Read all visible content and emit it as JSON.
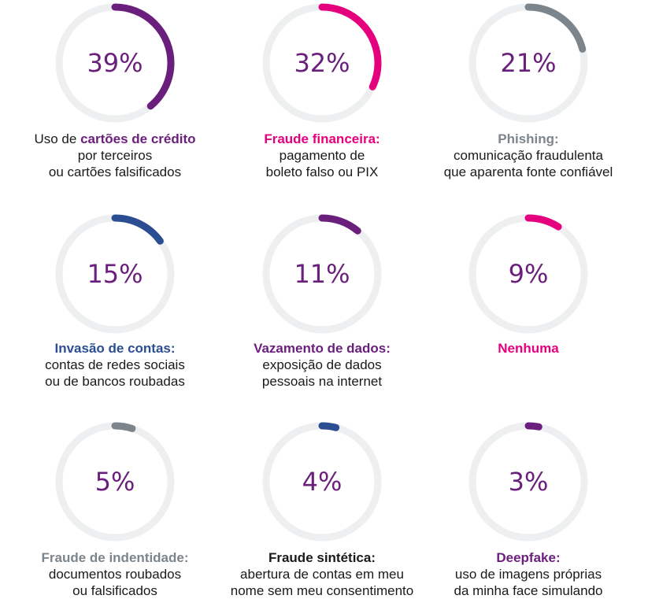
{
  "chart_data": {
    "type": "donut",
    "colors": {
      "track": "#eeeff0",
      "purple": "#6b1f7c",
      "magenta": "#e5007e",
      "gray": "#7c858c",
      "blue": "#2b4e93",
      "text": "#1a1a1a"
    },
    "items": [
      {
        "value": 39,
        "label": "39%",
        "color": "#6b1f7c",
        "caption": [
          {
            "parts": [
              {
                "t": "Uso de ",
                "c": "#1a1a1a",
                "b": false
              },
              {
                "t": "cartões de crédito",
                "c": "#6b1f7c",
                "b": true
              }
            ]
          },
          {
            "parts": [
              {
                "t": "por terceiros",
                "c": "#1a1a1a",
                "b": false
              }
            ]
          },
          {
            "parts": [
              {
                "t": "ou cartões falsificados",
                "c": "#1a1a1a",
                "b": false
              }
            ]
          }
        ]
      },
      {
        "value": 32,
        "label": "32%",
        "color": "#e5007e",
        "caption": [
          {
            "parts": [
              {
                "t": "Fraude financeira:",
                "c": "#e5007e",
                "b": true
              }
            ]
          },
          {
            "parts": [
              {
                "t": "pagamento de",
                "c": "#1a1a1a",
                "b": false
              }
            ]
          },
          {
            "parts": [
              {
                "t": "boleto falso ou PIX",
                "c": "#1a1a1a",
                "b": false
              }
            ]
          }
        ]
      },
      {
        "value": 21,
        "label": "21%",
        "color": "#7c858c",
        "caption": [
          {
            "parts": [
              {
                "t": "Phishing:",
                "c": "#7c858c",
                "b": true
              }
            ]
          },
          {
            "parts": [
              {
                "t": "comunicação fraudulenta",
                "c": "#1a1a1a",
                "b": false
              }
            ]
          },
          {
            "parts": [
              {
                "t": "que aparenta fonte confiável",
                "c": "#1a1a1a",
                "b": false
              }
            ]
          }
        ]
      },
      {
        "value": 15,
        "label": "15%",
        "color": "#2b4e93",
        "caption": [
          {
            "parts": [
              {
                "t": "Invasão de contas:",
                "c": "#2b4e93",
                "b": true
              }
            ]
          },
          {
            "parts": [
              {
                "t": "contas de redes sociais",
                "c": "#1a1a1a",
                "b": false
              }
            ]
          },
          {
            "parts": [
              {
                "t": "ou de bancos roubadas",
                "c": "#1a1a1a",
                "b": false
              }
            ]
          }
        ]
      },
      {
        "value": 11,
        "label": "11%",
        "color": "#6b1f7c",
        "caption": [
          {
            "parts": [
              {
                "t": "Vazamento de dados:",
                "c": "#6b1f7c",
                "b": true
              }
            ]
          },
          {
            "parts": [
              {
                "t": "exposição de dados",
                "c": "#1a1a1a",
                "b": false
              }
            ]
          },
          {
            "parts": [
              {
                "t": "pessoais na internet",
                "c": "#1a1a1a",
                "b": false
              }
            ]
          }
        ]
      },
      {
        "value": 9,
        "label": "9%",
        "color": "#e5007e",
        "caption": [
          {
            "parts": [
              {
                "t": "Nenhuma",
                "c": "#e5007e",
                "b": true
              }
            ]
          }
        ]
      },
      {
        "value": 5,
        "label": "5%",
        "color": "#7c858c",
        "caption": [
          {
            "parts": [
              {
                "t": "Fraude de indentidade:",
                "c": "#7c858c",
                "b": true
              }
            ]
          },
          {
            "parts": [
              {
                "t": "documentos roubados",
                "c": "#1a1a1a",
                "b": false
              }
            ]
          },
          {
            "parts": [
              {
                "t": "ou falsificados",
                "c": "#1a1a1a",
                "b": false
              }
            ]
          }
        ]
      },
      {
        "value": 4,
        "label": "4%",
        "color": "#2b4e93",
        "caption": [
          {
            "parts": [
              {
                "t": "Fraude sintética:",
                "c": "#1a1a1a",
                "b": true
              }
            ]
          },
          {
            "parts": [
              {
                "t": "abertura de contas em meu",
                "c": "#1a1a1a",
                "b": false
              }
            ]
          },
          {
            "parts": [
              {
                "t": "nome sem meu consentimento",
                "c": "#1a1a1a",
                "b": false
              }
            ]
          }
        ]
      },
      {
        "value": 3,
        "label": "3%",
        "color": "#6b1f7c",
        "caption": [
          {
            "parts": [
              {
                "t": "Deepfake:",
                "c": "#6b1f7c",
                "b": true
              }
            ]
          },
          {
            "parts": [
              {
                "t": "uso de imagens próprias",
                "c": "#1a1a1a",
                "b": false
              }
            ]
          },
          {
            "parts": [
              {
                "t": "da minha face simulando",
                "c": "#1a1a1a",
                "b": false
              }
            ]
          }
        ]
      }
    ]
  }
}
